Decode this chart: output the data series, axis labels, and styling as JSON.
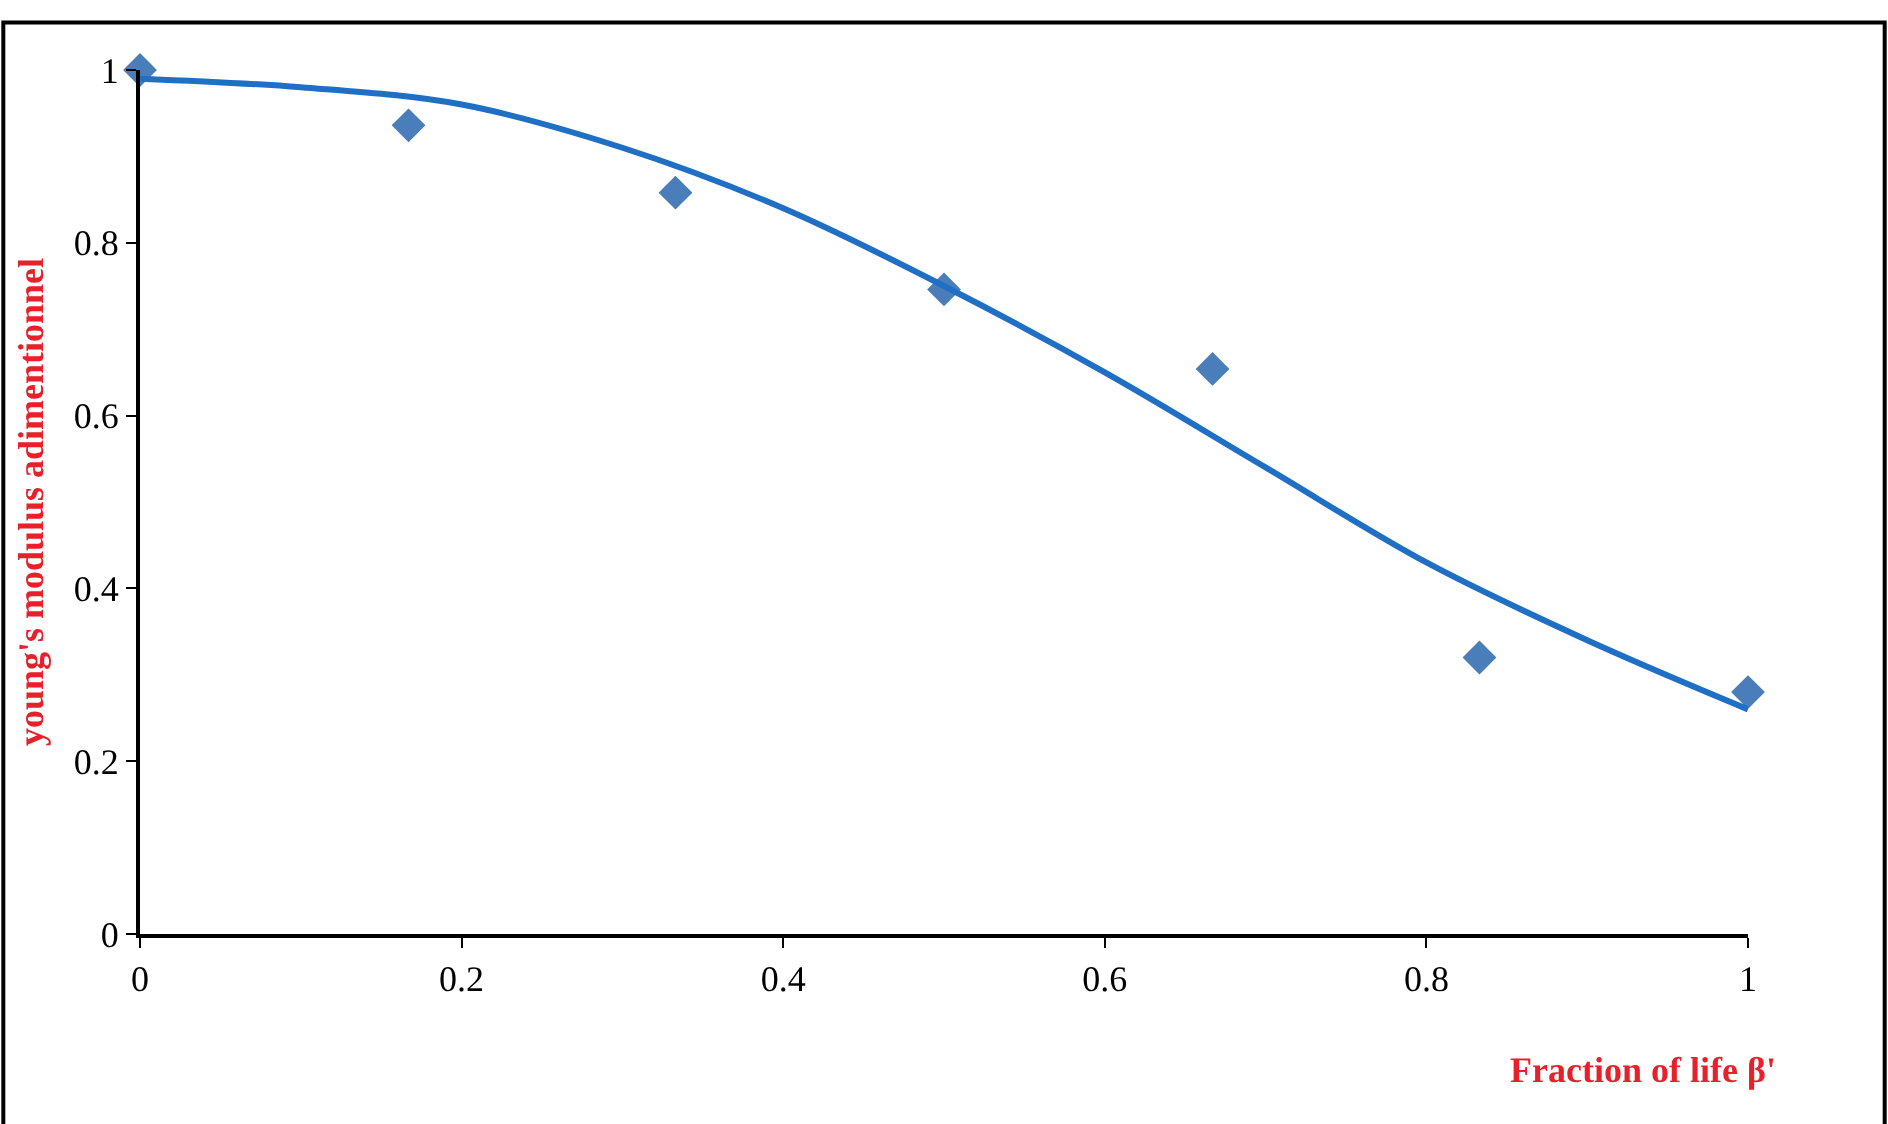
{
  "chart_data": {
    "type": "scatter",
    "xlabel": "Fraction of life β'",
    "ylabel": "young's modulus adimentionnel",
    "xlim": [
      0,
      1
    ],
    "xticks": [
      0,
      0.2,
      0.4,
      0.6,
      0.8,
      1
    ],
    "ylim": [
      0,
      1
    ],
    "yticks": [
      0,
      0.2,
      0.4,
      0.6,
      0.8,
      1
    ],
    "legend": false,
    "series": [
      {
        "marker": "diamond",
        "color": "#4a7ebb",
        "x": [
          0,
          0.167,
          0.333,
          0.5,
          0.667,
          0.833,
          1
        ],
        "values": [
          1.0,
          0.936,
          0.858,
          0.746,
          0.654,
          0.32,
          0.28
        ]
      },
      {
        "type": "line",
        "marker": "none",
        "line_style": "solid",
        "color": "#1f6fc5",
        "x": [
          0,
          0.1,
          0.2,
          0.3,
          0.4,
          0.5,
          0.6,
          0.7,
          0.8,
          0.9,
          1
        ],
        "values": [
          0.99,
          0.98,
          0.96,
          0.91,
          0.84,
          0.75,
          0.65,
          0.54,
          0.43,
          0.34,
          0.26
        ]
      }
    ]
  }
}
